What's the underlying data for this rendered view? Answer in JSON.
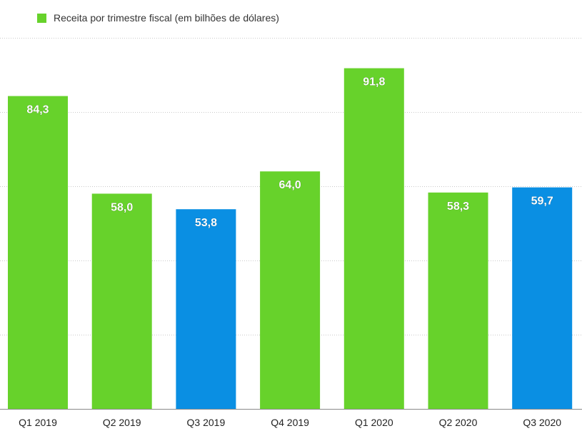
{
  "chart_data": {
    "type": "bar",
    "title": "",
    "xlabel": "",
    "ylabel": "",
    "legend": {
      "label": "Receita por trimestre fiscal (em bilhões de dólares)",
      "color": "#67d22b",
      "position": "top-left"
    },
    "categories": [
      "Q1 2019",
      "Q2 2019",
      "Q3 2019",
      "Q4 2019",
      "Q1 2020",
      "Q2 2020",
      "Q3 2020"
    ],
    "values": [
      84.3,
      58.0,
      53.8,
      64.0,
      91.8,
      58.3,
      59.7
    ],
    "value_labels": [
      "84,3",
      "58,0",
      "53,8",
      "64,0",
      "91,8",
      "58,3",
      "59,7"
    ],
    "bar_colors": [
      "#67d22b",
      "#67d22b",
      "#0a8fe3",
      "#67d22b",
      "#67d22b",
      "#67d22b",
      "#0a8fe3"
    ],
    "ylim": [
      0,
      100
    ],
    "grid": true,
    "gridline_values": [
      20,
      40,
      60,
      80,
      100
    ]
  }
}
